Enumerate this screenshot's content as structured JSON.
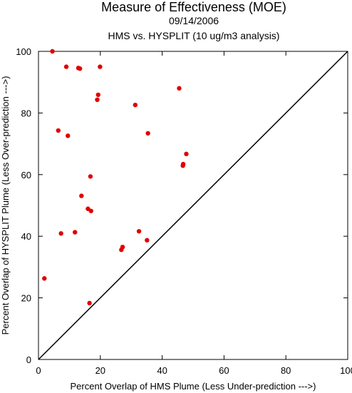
{
  "chart_data": {
    "type": "scatter",
    "title": "Measure of Effectiveness (MOE)",
    "subtitle_date": "09/14/2006",
    "subtitle_analysis": "HMS vs. HYSPLIT  (10 ug/m3 analysis)",
    "xlabel": "Percent Overlap of HMS Plume (Less Under-prediction --->)",
    "ylabel": "Percent Overlap of HYSPLIT Plume (Less Over-prediction --->)",
    "xlim": [
      0,
      100
    ],
    "ylim": [
      0,
      100
    ],
    "x_ticks": [
      0,
      20,
      40,
      60,
      80,
      100
    ],
    "y_ticks": [
      0,
      20,
      40,
      60,
      80,
      100
    ],
    "x_tick_labels": [
      "0",
      "20",
      "40",
      "60",
      "80",
      "100"
    ],
    "y_tick_labels": [
      "0",
      "20",
      "40",
      "60",
      "80",
      "100"
    ],
    "reference_line": {
      "from": [
        0,
        0
      ],
      "to": [
        100,
        100
      ]
    },
    "point_color": "#e00000",
    "line_color": "#000000",
    "grid": false,
    "points": [
      {
        "x": 4.5,
        "y": 100.0
      },
      {
        "x": 9.0,
        "y": 95.0
      },
      {
        "x": 12.9,
        "y": 94.6
      },
      {
        "x": 13.4,
        "y": 94.4
      },
      {
        "x": 19.9,
        "y": 95.0
      },
      {
        "x": 45.5,
        "y": 88.0
      },
      {
        "x": 19.3,
        "y": 85.9
      },
      {
        "x": 19.0,
        "y": 84.3
      },
      {
        "x": 31.3,
        "y": 82.6
      },
      {
        "x": 6.4,
        "y": 74.3
      },
      {
        "x": 9.5,
        "y": 72.6
      },
      {
        "x": 35.4,
        "y": 73.4
      },
      {
        "x": 47.8,
        "y": 66.7
      },
      {
        "x": 46.8,
        "y": 63.4
      },
      {
        "x": 46.7,
        "y": 62.9
      },
      {
        "x": 16.8,
        "y": 59.4
      },
      {
        "x": 13.9,
        "y": 53.1
      },
      {
        "x": 16.0,
        "y": 48.9
      },
      {
        "x": 17.0,
        "y": 48.2
      },
      {
        "x": 7.3,
        "y": 40.9
      },
      {
        "x": 11.8,
        "y": 41.3
      },
      {
        "x": 32.5,
        "y": 41.6
      },
      {
        "x": 35.1,
        "y": 38.7
      },
      {
        "x": 27.2,
        "y": 36.5
      },
      {
        "x": 26.8,
        "y": 35.6
      },
      {
        "x": 1.9,
        "y": 26.3
      },
      {
        "x": 16.5,
        "y": 18.3
      }
    ]
  }
}
